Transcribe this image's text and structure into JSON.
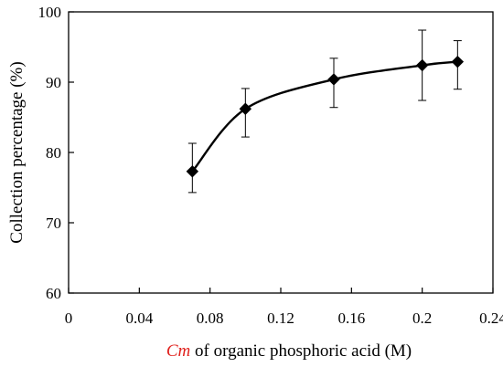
{
  "chart_data": {
    "type": "line",
    "title": "",
    "xlabel": "Cm of organic phosphoric acid  (M)",
    "xlabel_parts": {
      "symbol": "Cm",
      "rest": " of organic phosphoric acid  (M)"
    },
    "ylabel": "Collection percentage (%)",
    "xlim": [
      0,
      0.24
    ],
    "ylim": [
      60,
      100
    ],
    "xticks": [
      0,
      0.04,
      0.08,
      0.12,
      0.16,
      0.2,
      0.24
    ],
    "xtick_labels": [
      "0",
      "0.04",
      "0.08",
      "0.12",
      "0.16",
      "0.2",
      "0.24"
    ],
    "yticks": [
      60,
      70,
      80,
      90,
      100
    ],
    "ytick_labels": [
      "60",
      "70",
      "80",
      "90",
      "100"
    ],
    "grid": false,
    "legend": "none",
    "marker": "diamond",
    "line_style": "smooth",
    "colors": {
      "series": "#000000",
      "axis": "#000000",
      "symbol_highlight": "#e0201c"
    },
    "series": [
      {
        "points": [
          {
            "x": 0.07,
            "y": 77.3,
            "err_low": 74.3,
            "err_high": 81.3
          },
          {
            "x": 0.1,
            "y": 86.2,
            "err_low": 82.2,
            "err_high": 89.1
          },
          {
            "x": 0.15,
            "y": 90.4,
            "err_low": 86.4,
            "err_high": 93.4
          },
          {
            "x": 0.2,
            "y": 92.4,
            "err_low": 87.4,
            "err_high": 97.4
          },
          {
            "x": 0.22,
            "y": 92.9,
            "err_low": 89.0,
            "err_high": 95.9
          }
        ]
      }
    ]
  }
}
